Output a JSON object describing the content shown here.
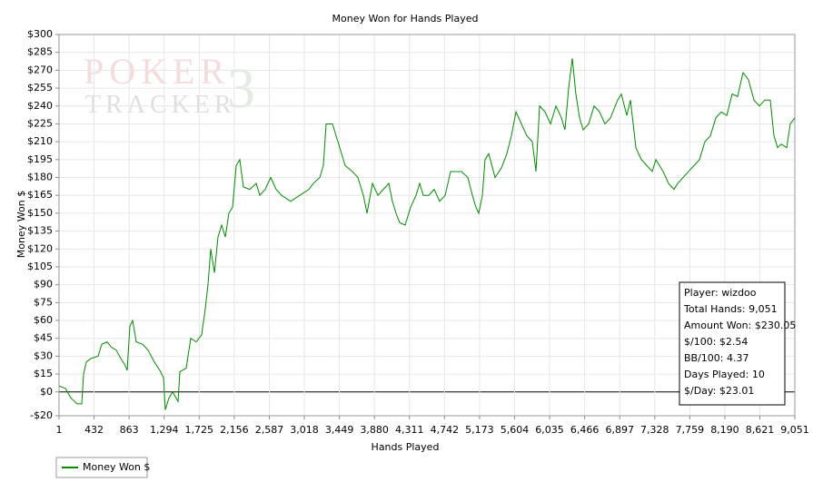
{
  "chart_data": {
    "type": "line",
    "title": "Money Won for Hands Played",
    "x_label": "Hands Played",
    "y_label": "Money Won $",
    "watermark": [
      "POKER",
      "TRACKER",
      "3"
    ],
    "annotations": [
      "Player: wizdoo",
      "Total Hands: 9,051",
      "Amount Won: $230.05",
      "$/100: $2.54",
      "BB/100: 4.37",
      "Days Played: 10",
      "$/Day: $23.01"
    ],
    "grid": true,
    "legend": "bottom-left",
    "xlim": [
      1,
      9051
    ],
    "ylim": [
      -20,
      300
    ],
    "xticks": [
      1,
      432,
      863,
      {
        "value": 1294,
        "label": "1,294"
      },
      {
        "value": 1725,
        "label": "1,725"
      },
      {
        "value": 2156,
        "label": "2,156"
      },
      {
        "value": 2587,
        "label": "2,587"
      },
      {
        "value": 3018,
        "label": "3,018"
      },
      {
        "value": 3449,
        "label": "3,449"
      },
      {
        "value": 3880,
        "label": "3,880"
      },
      {
        "value": 4311,
        "label": "4,311"
      },
      {
        "value": 4742,
        "label": "4,742"
      },
      {
        "value": 5173,
        "label": "5,173"
      },
      {
        "value": 5604,
        "label": "5,604"
      },
      {
        "value": 6035,
        "label": "6,035"
      },
      {
        "value": 6466,
        "label": "6,466"
      },
      {
        "value": 6897,
        "label": "6,897"
      },
      {
        "value": 7328,
        "label": "7,328"
      },
      {
        "value": 7759,
        "label": "7,759"
      },
      {
        "value": 8190,
        "label": "8,190"
      },
      {
        "value": 8621,
        "label": "8,621"
      },
      {
        "value": 9051,
        "label": "9,051"
      }
    ],
    "yticks": [
      {
        "value": -20,
        "label": "-$20"
      },
      {
        "value": 0,
        "label": "$0"
      },
      {
        "value": 15,
        "label": "$15"
      },
      {
        "value": 30,
        "label": "$30"
      },
      {
        "value": 45,
        "label": "$45"
      },
      {
        "value": 60,
        "label": "$60"
      },
      {
        "value": 75,
        "label": "$75"
      },
      {
        "value": 90,
        "label": "$90"
      },
      {
        "value": 105,
        "label": "$105"
      },
      {
        "value": 120,
        "label": "$120"
      },
      {
        "value": 135,
        "label": "$135"
      },
      {
        "value": 150,
        "label": "$150"
      },
      {
        "value": 165,
        "label": "$165"
      },
      {
        "value": 180,
        "label": "$180"
      },
      {
        "value": 195,
        "label": "$195"
      },
      {
        "value": 210,
        "label": "$210"
      },
      {
        "value": 225,
        "label": "$225"
      },
      {
        "value": 240,
        "label": "$240"
      },
      {
        "value": 255,
        "label": "$255"
      },
      {
        "value": 270,
        "label": "$270"
      },
      {
        "value": 285,
        "label": "$285"
      },
      {
        "value": 300,
        "label": "$300"
      }
    ],
    "x": [
      1,
      79,
      146,
      224,
      280,
      303,
      336,
      392,
      481,
      526,
      593,
      638,
      705,
      761,
      817,
      839,
      872,
      906,
      951,
      1029,
      1096,
      1174,
      1241,
      1286,
      1308,
      1353,
      1398,
      1465,
      1487,
      1565,
      1621,
      1688,
      1755,
      1800,
      1833,
      1867,
      1912,
      1956,
      2001,
      2046,
      2090,
      2135,
      2180,
      2224,
      2269,
      2347,
      2426,
      2470,
      2537,
      2604,
      2671,
      2738,
      2850,
      2962,
      3074,
      3129,
      3208,
      3252,
      3286,
      3364,
      3431,
      3520,
      3610,
      3677,
      3744,
      3789,
      3856,
      3923,
      3990,
      4057,
      4101,
      4146,
      4191,
      4258,
      4325,
      4392,
      4437,
      4481,
      4548,
      4615,
      4682,
      4750,
      4817,
      4884,
      4951,
      5029,
      5085,
      5129,
      5163,
      5208,
      5241,
      5286,
      5364,
      5442,
      5509,
      5565,
      5621,
      5688,
      5755,
      5822,
      5867,
      5912,
      5979,
      6046,
      6113,
      6180,
      6224,
      6269,
      6314,
      6358,
      6403,
      6448,
      6515,
      6582,
      6649,
      6716,
      6783,
      6872,
      6917,
      6984,
      7029,
      7096,
      7163,
      7230,
      7297,
      7342,
      7386,
      7431,
      7498,
      7565,
      7610,
      7677,
      7744,
      7811,
      7878,
      7945,
      8012,
      8079,
      8146,
      8213,
      8280,
      8347,
      8414,
      8481,
      8548,
      8615,
      8682,
      8749,
      8794,
      8839,
      8883,
      8951,
      8995,
      9051
    ],
    "series": [
      {
        "name": "Money Won $",
        "color": "#008c00",
        "values": [
          5,
          3,
          -5,
          -10,
          -10,
          15,
          25,
          28,
          30,
          40,
          42,
          38,
          35,
          28,
          22,
          18,
          55,
          60,
          42,
          40,
          35,
          25,
          18,
          12,
          -15,
          -5,
          0,
          -8,
          17,
          20,
          45,
          42,
          48,
          70,
          90,
          120,
          100,
          130,
          140,
          130,
          150,
          155,
          190,
          195,
          172,
          170,
          175,
          165,
          170,
          180,
          170,
          165,
          160,
          165,
          170,
          175,
          180,
          190,
          225,
          225,
          210,
          190,
          185,
          180,
          165,
          150,
          175,
          165,
          170,
          175,
          160,
          150,
          142,
          140,
          155,
          165,
          175,
          165,
          165,
          170,
          160,
          165,
          185,
          185,
          185,
          180,
          165,
          155,
          150,
          165,
          195,
          200,
          180,
          188,
          200,
          215,
          235,
          225,
          215,
          210,
          185,
          240,
          235,
          225,
          240,
          230,
          220,
          255,
          280,
          250,
          230,
          220,
          225,
          240,
          235,
          225,
          230,
          245,
          250,
          232,
          245,
          205,
          195,
          190,
          185,
          195,
          190,
          185,
          175,
          170,
          175,
          180,
          185,
          190,
          195,
          210,
          215,
          230,
          235,
          232,
          250,
          248,
          268,
          262,
          245,
          240,
          245,
          245,
          215,
          205,
          208,
          205,
          225,
          230.05
        ]
      }
    ]
  }
}
